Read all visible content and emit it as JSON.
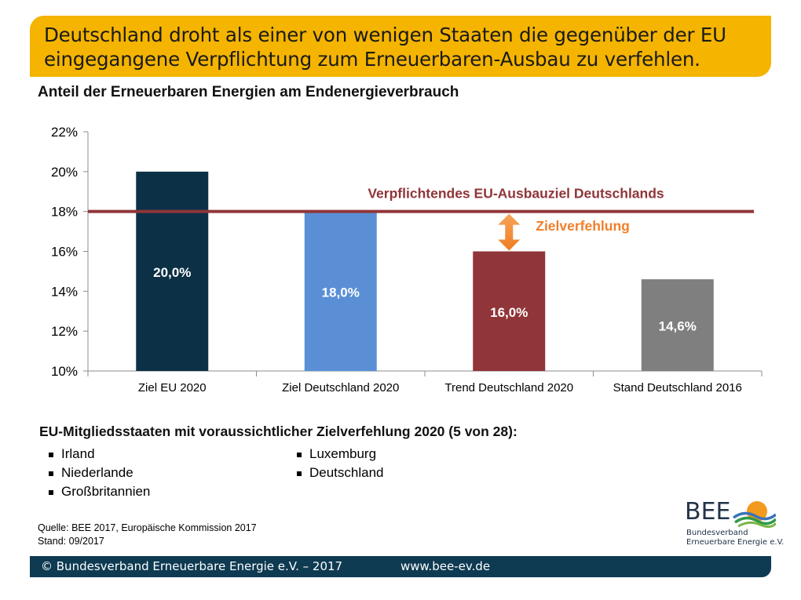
{
  "banner": {
    "line1": "Deutschland droht als einer von wenigen Staaten die gegenüber der EU",
    "line2": "eingegangene Verpflichtung zum Erneuerbaren-Ausbau zu verfehlen."
  },
  "chart_data": {
    "type": "bar",
    "title": "Anteil der Erneuerbaren Energien am Endenergieverbrauch",
    "categories": [
      "Ziel EU 2020",
      "Ziel Deutschland 2020",
      "Trend Deutschland 2020",
      "Stand Deutschland 2016"
    ],
    "values": [
      20.0,
      18.0,
      16.0,
      14.6
    ],
    "value_labels": [
      "20,0%",
      "18,0%",
      "16,0%",
      "14,6%"
    ],
    "colors": [
      "#0c3147",
      "#5a8fd6",
      "#903539",
      "#7f7f7f"
    ],
    "ylim": [
      10,
      22
    ],
    "yticks": [
      10,
      12,
      14,
      16,
      18,
      20,
      22
    ],
    "ytick_labels": [
      "10%",
      "12%",
      "14%",
      "16%",
      "18%",
      "20%",
      "22%"
    ],
    "grid": false,
    "reference_line": {
      "value": 18,
      "label": "Verpflichtendes EU-Ausbauziel Deutschlands",
      "color": "#903539"
    },
    "annotation": {
      "label": "Zielverfehlung",
      "from": 16,
      "to": 18,
      "category_index": 2,
      "color": "#f07f2a"
    }
  },
  "members": {
    "title": "EU-Mitgliedsstaaten mit voraussichtlicher Zielverfehlung 2020 (5 von 28):",
    "col1": [
      "Irland",
      "Niederlande",
      "Großbritannien"
    ],
    "col2": [
      "Luxemburg",
      "Deutschland"
    ]
  },
  "source": {
    "line1": "Quelle: BEE 2017, Europäische Kommission 2017",
    "line2": "Stand: 09/2017"
  },
  "logo": {
    "name": "BEE",
    "sub1": "Bundesverband",
    "sub2": "Erneuerbare Energie e.V."
  },
  "footer": {
    "copyright": "© Bundesverband Erneuerbare Energie e.V. – 2017",
    "url": "www.bee-ev.de"
  }
}
